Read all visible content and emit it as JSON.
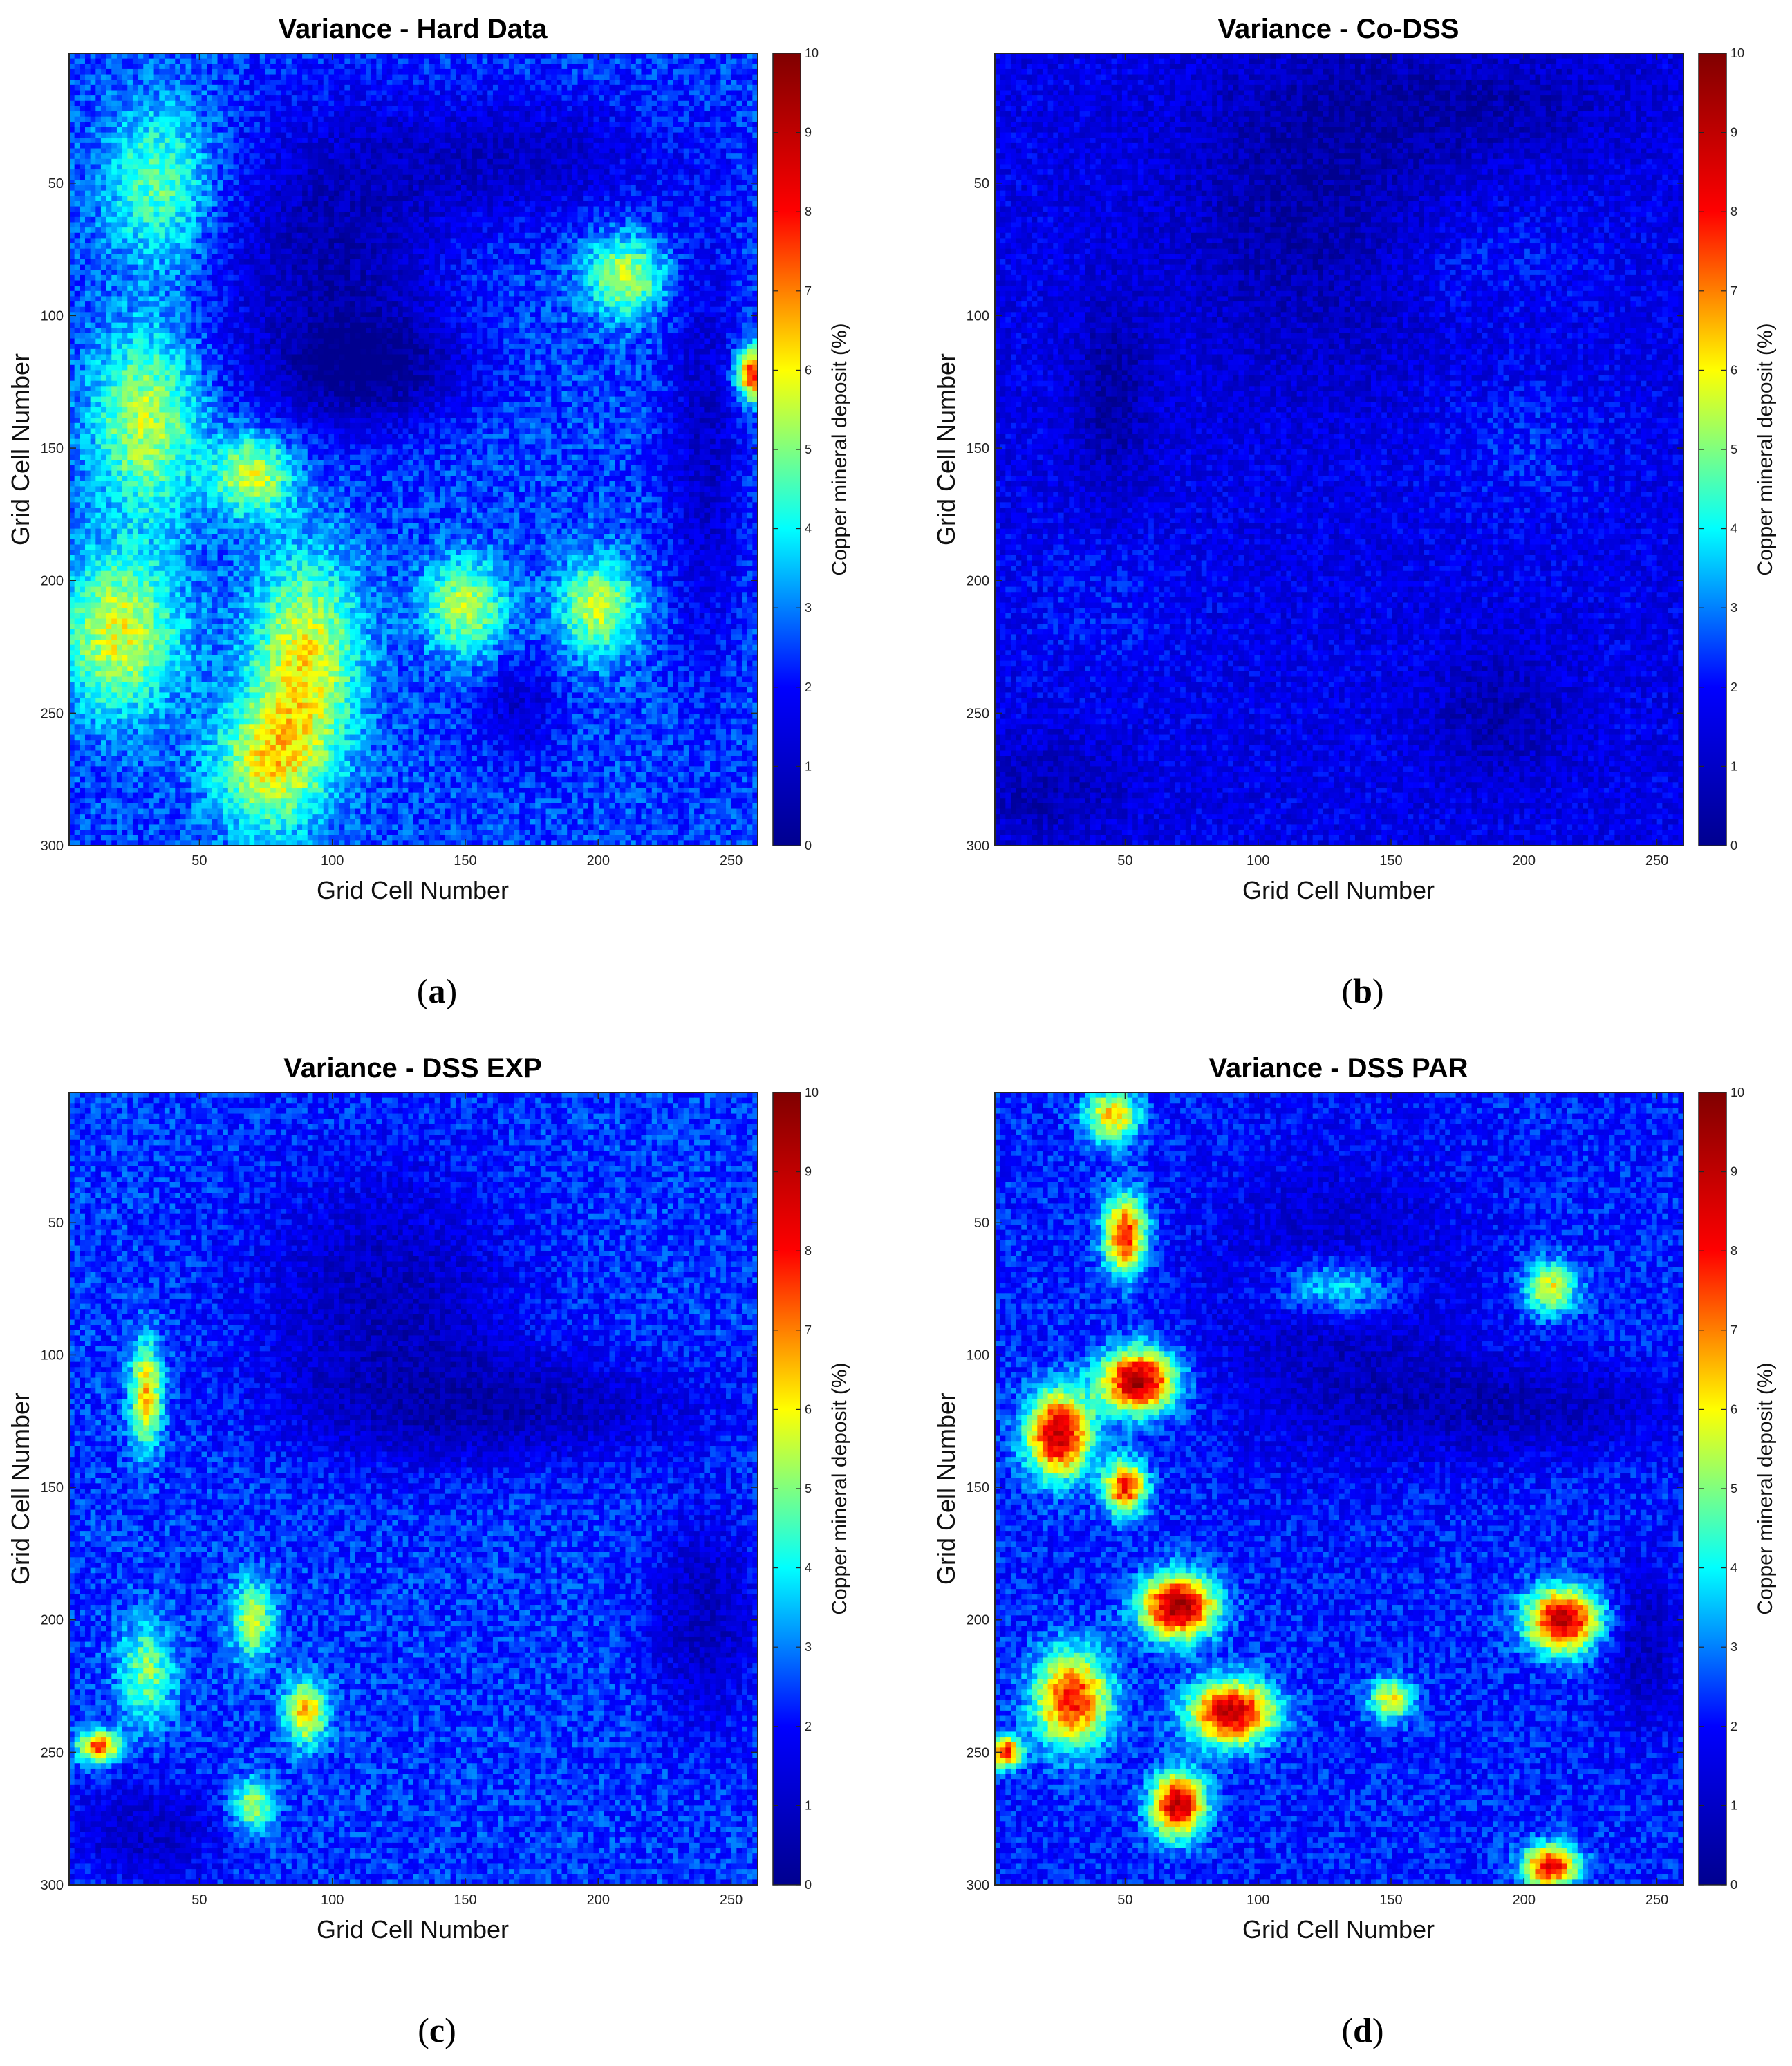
{
  "colors": {
    "colormap": "jet",
    "colormap_stops": [
      "#00008f",
      "#0000ff",
      "#00ffff",
      "#ffff00",
      "#ff0000",
      "#800000"
    ],
    "axes_edge": "#262626"
  },
  "captions": [
    "a",
    "b",
    "c",
    "d"
  ],
  "chart_data": [
    {
      "type": "heatmap",
      "title": "Variance - Hard Data",
      "xlabel": "Grid Cell Number",
      "ylabel": "Grid Cell Number",
      "xlim": [
        1,
        260
      ],
      "ylim": [
        300,
        1
      ],
      "xticks": [
        50,
        100,
        150,
        200,
        250
      ],
      "yticks": [
        50,
        100,
        150,
        200,
        250,
        300
      ],
      "colorbar": {
        "label": "Copper mineral deposit (%)",
        "range": [
          0,
          10
        ],
        "ticks": [
          0,
          1,
          2,
          3,
          4,
          5,
          6,
          7,
          8,
          9,
          10
        ]
      },
      "base_level": 2.5,
      "regions": [
        {
          "x": 35,
          "y": 50,
          "value": 4.8,
          "rx": 20,
          "ry": 30
        },
        {
          "x": 30,
          "y": 140,
          "value": 5.5,
          "rx": 20,
          "ry": 35
        },
        {
          "x": 70,
          "y": 160,
          "value": 5.8,
          "rx": 15,
          "ry": 15
        },
        {
          "x": 20,
          "y": 220,
          "value": 5.8,
          "rx": 22,
          "ry": 30
        },
        {
          "x": 90,
          "y": 230,
          "value": 6.0,
          "rx": 20,
          "ry": 40
        },
        {
          "x": 75,
          "y": 270,
          "value": 5.5,
          "rx": 20,
          "ry": 25
        },
        {
          "x": 150,
          "y": 210,
          "value": 5.5,
          "rx": 15,
          "ry": 18
        },
        {
          "x": 200,
          "y": 210,
          "value": 5.5,
          "rx": 15,
          "ry": 18
        },
        {
          "x": 210,
          "y": 85,
          "value": 5.5,
          "rx": 15,
          "ry": 15
        },
        {
          "x": 258,
          "y": 122,
          "value": 8.0,
          "rx": 6,
          "ry": 10
        },
        {
          "x": 100,
          "y": 80,
          "value": 0.6,
          "rx": 42,
          "ry": 55
        },
        {
          "x": 115,
          "y": 120,
          "value": 0.6,
          "rx": 35,
          "ry": 20
        },
        {
          "x": 170,
          "y": 40,
          "value": 1.0,
          "rx": 55,
          "ry": 25
        },
        {
          "x": 240,
          "y": 150,
          "value": 1.0,
          "rx": 14,
          "ry": 80
        },
        {
          "x": 170,
          "y": 250,
          "value": 1.2,
          "rx": 15,
          "ry": 20
        }
      ]
    },
    {
      "type": "heatmap",
      "title": "Variance - Co-DSS",
      "xlabel": "Grid Cell Number",
      "ylabel": "Grid Cell Number",
      "xlim": [
        1,
        260
      ],
      "ylim": [
        300,
        1
      ],
      "xticks": [
        50,
        100,
        150,
        200,
        250
      ],
      "yticks": [
        50,
        100,
        150,
        200,
        250,
        300
      ],
      "colorbar": {
        "label": "Copper mineral deposit (%)",
        "range": [
          0,
          10
        ],
        "ticks": [
          0,
          1,
          2,
          3,
          4,
          5,
          6,
          7,
          8,
          9,
          10
        ]
      },
      "base_level": 1.6,
      "regions": [
        {
          "x": 120,
          "y": 60,
          "value": 0.4,
          "rx": 50,
          "ry": 60
        },
        {
          "x": 45,
          "y": 130,
          "value": 0.3,
          "rx": 14,
          "ry": 35
        },
        {
          "x": 180,
          "y": 20,
          "value": 0.6,
          "rx": 60,
          "ry": 20
        },
        {
          "x": 190,
          "y": 250,
          "value": 0.6,
          "rx": 25,
          "ry": 25
        },
        {
          "x": 20,
          "y": 280,
          "value": 0.7,
          "rx": 30,
          "ry": 20
        },
        {
          "x": 180,
          "y": 80,
          "value": 2.2,
          "rx": 40,
          "ry": 20
        },
        {
          "x": 200,
          "y": 150,
          "value": 2.2,
          "rx": 35,
          "ry": 25
        },
        {
          "x": 40,
          "y": 210,
          "value": 2.0,
          "rx": 40,
          "ry": 30
        }
      ]
    },
    {
      "type": "heatmap",
      "title": "Variance - DSS EXP",
      "xlabel": "Grid Cell Number",
      "ylabel": "Grid Cell Number",
      "xlim": [
        1,
        260
      ],
      "ylim": [
        300,
        1
      ],
      "xticks": [
        50,
        100,
        150,
        200,
        250
      ],
      "yticks": [
        50,
        100,
        150,
        200,
        250,
        300
      ],
      "colorbar": {
        "label": "Copper mineral deposit (%)",
        "range": [
          0,
          10
        ],
        "ticks": [
          0,
          1,
          2,
          3,
          4,
          5,
          6,
          7,
          8,
          9,
          10
        ]
      },
      "base_level": 2.4,
      "regions": [
        {
          "x": 120,
          "y": 80,
          "value": 0.8,
          "rx": 50,
          "ry": 50
        },
        {
          "x": 170,
          "y": 120,
          "value": 0.8,
          "rx": 70,
          "ry": 20
        },
        {
          "x": 240,
          "y": 200,
          "value": 0.8,
          "rx": 20,
          "ry": 40
        },
        {
          "x": 30,
          "y": 280,
          "value": 1.0,
          "rx": 30,
          "ry": 20
        },
        {
          "x": 30,
          "y": 115,
          "value": 6.5,
          "rx": 6,
          "ry": 20
        },
        {
          "x": 12,
          "y": 248,
          "value": 7.5,
          "rx": 8,
          "ry": 6
        },
        {
          "x": 90,
          "y": 235,
          "value": 6.5,
          "rx": 8,
          "ry": 12
        },
        {
          "x": 70,
          "y": 200,
          "value": 5.5,
          "rx": 8,
          "ry": 15
        },
        {
          "x": 70,
          "y": 270,
          "value": 5.5,
          "rx": 8,
          "ry": 10
        },
        {
          "x": 30,
          "y": 220,
          "value": 5.0,
          "rx": 10,
          "ry": 20
        }
      ]
    },
    {
      "type": "heatmap",
      "title": "Variance - DSS PAR",
      "xlabel": "Grid Cell Number",
      "ylabel": "Grid Cell Number",
      "xlim": [
        1,
        260
      ],
      "ylim": [
        300,
        1
      ],
      "xticks": [
        50,
        100,
        150,
        200,
        250
      ],
      "yticks": [
        50,
        100,
        150,
        200,
        250,
        300
      ],
      "colorbar": {
        "label": "Copper mineral deposit (%)",
        "range": [
          0,
          10
        ],
        "ticks": [
          0,
          1,
          2,
          3,
          4,
          5,
          6,
          7,
          8,
          9,
          10
        ]
      },
      "base_level": 2.2,
      "regions": [
        {
          "x": 130,
          "y": 80,
          "value": 0.8,
          "rx": 50,
          "ry": 55
        },
        {
          "x": 200,
          "y": 120,
          "value": 0.8,
          "rx": 60,
          "ry": 18
        },
        {
          "x": 245,
          "y": 210,
          "value": 0.8,
          "rx": 15,
          "ry": 30
        },
        {
          "x": 55,
          "y": 110,
          "value": 9.5,
          "rx": 14,
          "ry": 12
        },
        {
          "x": 25,
          "y": 130,
          "value": 9.0,
          "rx": 12,
          "ry": 16
        },
        {
          "x": 70,
          "y": 195,
          "value": 9.5,
          "rx": 14,
          "ry": 12
        },
        {
          "x": 90,
          "y": 235,
          "value": 9.0,
          "rx": 16,
          "ry": 12
        },
        {
          "x": 70,
          "y": 270,
          "value": 9.0,
          "rx": 10,
          "ry": 12
        },
        {
          "x": 215,
          "y": 200,
          "value": 9.0,
          "rx": 14,
          "ry": 12
        },
        {
          "x": 30,
          "y": 230,
          "value": 8.0,
          "rx": 14,
          "ry": 18
        },
        {
          "x": 50,
          "y": 55,
          "value": 8.0,
          "rx": 8,
          "ry": 15
        },
        {
          "x": 50,
          "y": 150,
          "value": 8.0,
          "rx": 8,
          "ry": 10
        },
        {
          "x": 210,
          "y": 293,
          "value": 8.5,
          "rx": 10,
          "ry": 8
        },
        {
          "x": 45,
          "y": 10,
          "value": 6.5,
          "rx": 10,
          "ry": 10
        },
        {
          "x": 210,
          "y": 75,
          "value": 6.0,
          "rx": 10,
          "ry": 10
        },
        {
          "x": 5,
          "y": 250,
          "value": 8.0,
          "rx": 6,
          "ry": 6
        },
        {
          "x": 150,
          "y": 230,
          "value": 6.0,
          "rx": 8,
          "ry": 8
        },
        {
          "x": 130,
          "y": 75,
          "value": 5.0,
          "rx": 25,
          "ry": 12
        }
      ]
    }
  ]
}
